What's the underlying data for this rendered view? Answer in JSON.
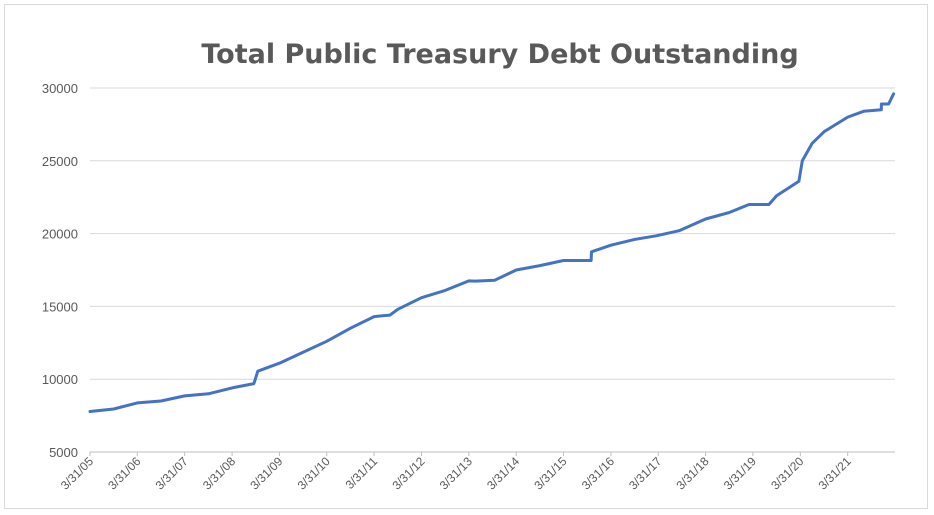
{
  "chart_data": {
    "type": "line",
    "title": "Total Public Treasury Debt Outstanding",
    "xlabel": "",
    "ylabel": "",
    "ylim": [
      5000,
      30000
    ],
    "yticks": [
      5000,
      10000,
      15000,
      20000,
      25000,
      30000
    ],
    "xlim": [
      "2005-03-31",
      "2022-03-31"
    ],
    "x_tick_labels": [
      "3/31/05",
      "3/31/06",
      "3/31/07",
      "3/31/08",
      "3/31/09",
      "3/31/10",
      "3/31/11",
      "3/31/12",
      "3/31/13",
      "3/31/14",
      "3/31/15",
      "3/31/16",
      "3/31/17",
      "3/31/18",
      "3/31/19",
      "3/31/20",
      "3/31/21"
    ],
    "grid": "horizontal",
    "legend": "none",
    "series_color": "#4472c4",
    "series": [
      {
        "name": "",
        "x": [
          "2005-03-31",
          "2005-09-30",
          "2006-03-31",
          "2006-09-30",
          "2007-03-31",
          "2007-09-30",
          "2008-03-31",
          "2008-09-15",
          "2008-10-15",
          "2009-03-31",
          "2009-09-30",
          "2010-03-31",
          "2010-09-30",
          "2011-03-31",
          "2011-05-16",
          "2011-08-01",
          "2011-09-30",
          "2012-03-31",
          "2012-09-30",
          "2013-03-31",
          "2013-05-19",
          "2013-10-17",
          "2014-03-31",
          "2014-09-30",
          "2015-03-31",
          "2015-10-30",
          "2015-11-02",
          "2016-03-31",
          "2016-09-30",
          "2017-03-15",
          "2017-09-08",
          "2018-03-31",
          "2018-09-30",
          "2019-03-01",
          "2019-08-01",
          "2019-09-30",
          "2020-03-20",
          "2020-04-15",
          "2020-06-30",
          "2020-09-30",
          "2021-03-31",
          "2021-08-01",
          "2021-12-15",
          "2021-12-16",
          "2022-02-10",
          "2022-03-20"
        ],
        "values": [
          7780,
          7950,
          8370,
          8500,
          8850,
          9000,
          9400,
          9700,
          10550,
          11100,
          11850,
          12600,
          13500,
          14300,
          14340,
          14400,
          14800,
          15600,
          16100,
          16750,
          16740,
          16800,
          17500,
          17800,
          18150,
          18150,
          18750,
          19200,
          19600,
          19850,
          20200,
          21000,
          21450,
          22000,
          22000,
          22600,
          23600,
          25000,
          26200,
          27000,
          28000,
          28400,
          28500,
          28900,
          28900,
          29600
        ]
      }
    ]
  }
}
